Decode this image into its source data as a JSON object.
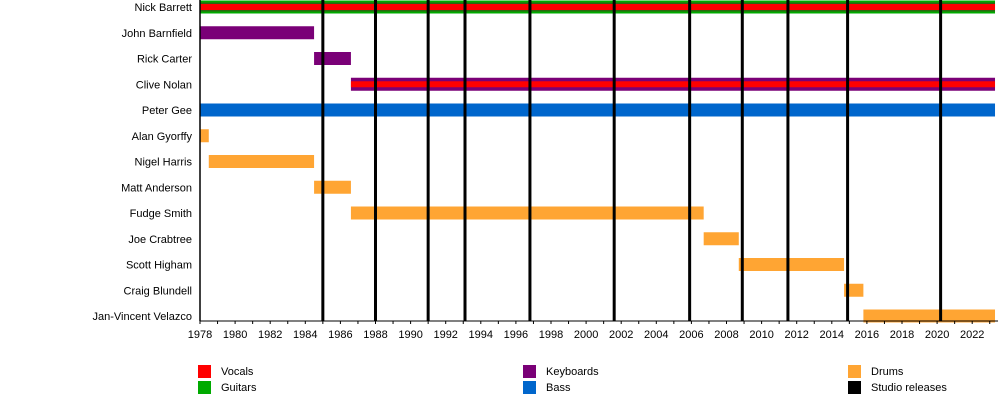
{
  "chart_data": {
    "type": "timeline",
    "xlim": [
      1978,
      2023.3
    ],
    "x_ticks": [
      1978,
      1980,
      1982,
      1984,
      1986,
      1988,
      1990,
      1992,
      1994,
      1996,
      1998,
      2000,
      2002,
      2004,
      2006,
      2008,
      2010,
      2012,
      2014,
      2016,
      2018,
      2020,
      2022
    ],
    "colors": {
      "Vocals": "#ff0000",
      "Guitars": "#00aa00",
      "Keyboards": "#7a0077",
      "Bass": "#0066cc",
      "Drums": "#ffa533",
      "Studio releases": "#000000"
    },
    "members": [
      {
        "name": "Nick Barrett",
        "periods": [
          {
            "start": 1978,
            "end": 2023.3,
            "roles": [
              "Guitars",
              "Vocals"
            ]
          }
        ]
      },
      {
        "name": "John Barnfield",
        "periods": [
          {
            "start": 1978,
            "end": 1984.5,
            "roles": [
              "Keyboards"
            ]
          }
        ]
      },
      {
        "name": "Rick Carter",
        "periods": [
          {
            "start": 1984.5,
            "end": 1986.6,
            "roles": [
              "Keyboards"
            ]
          }
        ]
      },
      {
        "name": "Clive Nolan",
        "periods": [
          {
            "start": 1986.6,
            "end": 2023.3,
            "roles": [
              "Keyboards",
              "Vocals"
            ]
          }
        ]
      },
      {
        "name": "Peter Gee",
        "periods": [
          {
            "start": 1978,
            "end": 2023.3,
            "roles": [
              "Bass"
            ]
          }
        ]
      },
      {
        "name": "Alan Gyorffy",
        "periods": [
          {
            "start": 1978,
            "end": 1978.5,
            "roles": [
              "Drums"
            ]
          }
        ]
      },
      {
        "name": "Nigel Harris",
        "periods": [
          {
            "start": 1978.5,
            "end": 1984.5,
            "roles": [
              "Drums"
            ]
          }
        ]
      },
      {
        "name": "Matt Anderson",
        "periods": [
          {
            "start": 1984.5,
            "end": 1986.6,
            "roles": [
              "Drums"
            ]
          }
        ]
      },
      {
        "name": "Fudge Smith",
        "periods": [
          {
            "start": 1986.6,
            "end": 2006.7,
            "roles": [
              "Drums"
            ]
          }
        ]
      },
      {
        "name": "Joe Crabtree",
        "periods": [
          {
            "start": 2006.7,
            "end": 2008.7,
            "roles": [
              "Drums"
            ]
          }
        ]
      },
      {
        "name": "Scott Higham",
        "periods": [
          {
            "start": 2008.7,
            "end": 2014.7,
            "roles": [
              "Drums"
            ]
          }
        ]
      },
      {
        "name": "Craig Blundell",
        "periods": [
          {
            "start": 2014.7,
            "end": 2015.8,
            "roles": [
              "Drums"
            ]
          }
        ]
      },
      {
        "name": "Jan-Vincent Velazco",
        "periods": [
          {
            "start": 2015.8,
            "end": 2023.3,
            "roles": [
              "Drums"
            ]
          }
        ]
      }
    ],
    "studio_releases": [
      1985.0,
      1988.0,
      1991.0,
      1993.1,
      1996.8,
      2001.6,
      2005.9,
      2008.9,
      2011.5,
      2014.9,
      2020.2
    ],
    "legend": {
      "placement": "bottom",
      "items": [
        "Vocals",
        "Guitars",
        "Keyboards",
        "Bass",
        "Drums",
        "Studio releases"
      ]
    }
  }
}
